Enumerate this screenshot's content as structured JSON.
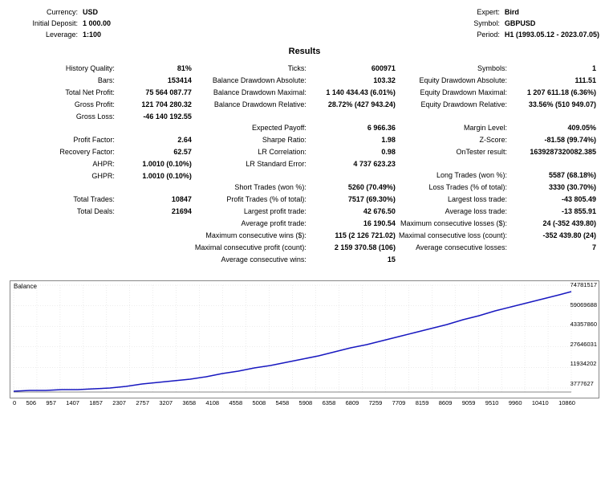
{
  "header": {
    "left": [
      {
        "label": "Currency:",
        "value": "USD"
      },
      {
        "label": "Initial Deposit:",
        "value": "1 000.00"
      },
      {
        "label": "Leverage:",
        "value": "1:100"
      }
    ],
    "right": [
      {
        "label": "Expert:",
        "value": "Bird"
      },
      {
        "label": "Symbol:",
        "value": "GBPUSD"
      },
      {
        "label": "Period:",
        "value": "H1 (1993.05.12 - 2023.07.05)"
      }
    ]
  },
  "results_title": "Results",
  "columns": [
    [
      {
        "label": "History Quality:",
        "value": "81%"
      },
      {
        "label": "Bars:",
        "value": "153414"
      },
      {
        "label": "Total Net Profit:",
        "value": "75 564 087.77"
      },
      {
        "label": "Gross Profit:",
        "value": "121 704 280.32"
      },
      {
        "label": "Gross Loss:",
        "value": "-46 140 192.55"
      },
      {
        "spacer": true
      },
      {
        "label": "Profit Factor:",
        "value": "2.64"
      },
      {
        "label": "Recovery Factor:",
        "value": "62.57"
      },
      {
        "label": "AHPR:",
        "value": "1.0010 (0.10%)"
      },
      {
        "label": "GHPR:",
        "value": "1.0010 (0.10%)"
      },
      {
        "spacer": true
      },
      {
        "label": "Total Trades:",
        "value": "10847"
      },
      {
        "label": "Total Deals:",
        "value": "21694"
      }
    ],
    [
      {
        "label": "",
        "value": ""
      },
      {
        "label": "Ticks:",
        "value": "600971"
      },
      {
        "label": "Balance Drawdown Absolute:",
        "value": "103.32"
      },
      {
        "label": "Balance Drawdown Maximal:",
        "value": "1 140 434.43 (6.01%)"
      },
      {
        "label": "Balance Drawdown Relative:",
        "value": "28.72% (427 943.24)"
      },
      {
        "spacer": true
      },
      {
        "label": "Expected Payoff:",
        "value": "6 966.36"
      },
      {
        "label": "Sharpe Ratio:",
        "value": "1.98"
      },
      {
        "label": "LR Correlation:",
        "value": "0.98"
      },
      {
        "label": "LR Standard Error:",
        "value": "4 737 623.23"
      },
      {
        "spacer": true
      },
      {
        "label": "Short Trades (won %):",
        "value": "5260 (70.49%)"
      },
      {
        "label": "Profit Trades (% of total):",
        "value": "7517 (69.30%)"
      },
      {
        "label": "Largest profit trade:",
        "value": "42 676.50"
      },
      {
        "label": "Average profit trade:",
        "value": "16 190.54"
      },
      {
        "label": "Maximum consecutive wins ($):",
        "value": "115 (2 126 721.02)"
      },
      {
        "label": "Maximal consecutive profit (count):",
        "value": "2 159 370.58 (106)"
      },
      {
        "label": "Average consecutive wins:",
        "value": "15"
      }
    ],
    [
      {
        "label": "",
        "value": ""
      },
      {
        "label": "Symbols:",
        "value": "1"
      },
      {
        "label": "Equity Drawdown Absolute:",
        "value": "111.51"
      },
      {
        "label": "Equity Drawdown Maximal:",
        "value": "1 207 611.18 (6.36%)"
      },
      {
        "label": "Equity Drawdown Relative:",
        "value": "33.56% (510 949.07)"
      },
      {
        "spacer": true
      },
      {
        "label": "Margin Level:",
        "value": "409.05%"
      },
      {
        "label": "Z-Score:",
        "value": "-81.58 (99.74%)"
      },
      {
        "label": "OnTester result:",
        "value": "1639287320082.385"
      },
      {
        "label": "",
        "value": ""
      },
      {
        "spacer": true
      },
      {
        "label": "Long Trades (won %):",
        "value": "5587 (68.18%)"
      },
      {
        "label": "Loss Trades (% of total):",
        "value": "3330 (30.70%)"
      },
      {
        "label": "Largest loss trade:",
        "value": "-43 805.49"
      },
      {
        "label": "Average loss trade:",
        "value": "-13 855.91"
      },
      {
        "label": "Maximum consecutive losses ($):",
        "value": "24 (-352 439.80)"
      },
      {
        "label": "Maximal consecutive loss (count):",
        "value": "-352 439.80 (24)"
      },
      {
        "label": "Average consecutive losses:",
        "value": "7"
      }
    ]
  ],
  "chart": {
    "title": "Balance",
    "line_color": "#1818c0",
    "grid_color": "#d8d8d8",
    "background": "#ffffff",
    "x_ticks": [
      "0",
      "506",
      "957",
      "1407",
      "1857",
      "2307",
      "2757",
      "3207",
      "3658",
      "4108",
      "4558",
      "5008",
      "5458",
      "5908",
      "6358",
      "6809",
      "7259",
      "7709",
      "8159",
      "8609",
      "9059",
      "9510",
      "9960",
      "10410",
      "10860"
    ],
    "y_ticks": [
      "74781517",
      "59069688",
      "43357860",
      "27646031",
      "11934202",
      "3777627"
    ],
    "points": [
      [
        0,
        132
      ],
      [
        20,
        131
      ],
      [
        40,
        131
      ],
      [
        60,
        130
      ],
      [
        80,
        130
      ],
      [
        100,
        129
      ],
      [
        120,
        128
      ],
      [
        140,
        126
      ],
      [
        160,
        123
      ],
      [
        180,
        121
      ],
      [
        200,
        119
      ],
      [
        220,
        117
      ],
      [
        240,
        114
      ],
      [
        260,
        110
      ],
      [
        280,
        107
      ],
      [
        300,
        103
      ],
      [
        320,
        100
      ],
      [
        340,
        96
      ],
      [
        360,
        92
      ],
      [
        380,
        88
      ],
      [
        400,
        83
      ],
      [
        420,
        78
      ],
      [
        440,
        74
      ],
      [
        460,
        69
      ],
      [
        480,
        64
      ],
      [
        500,
        59
      ],
      [
        520,
        54
      ],
      [
        540,
        49
      ],
      [
        560,
        43
      ],
      [
        580,
        38
      ],
      [
        600,
        32
      ],
      [
        620,
        27
      ],
      [
        640,
        22
      ],
      [
        660,
        17
      ],
      [
        680,
        12
      ],
      [
        695,
        8
      ]
    ]
  }
}
